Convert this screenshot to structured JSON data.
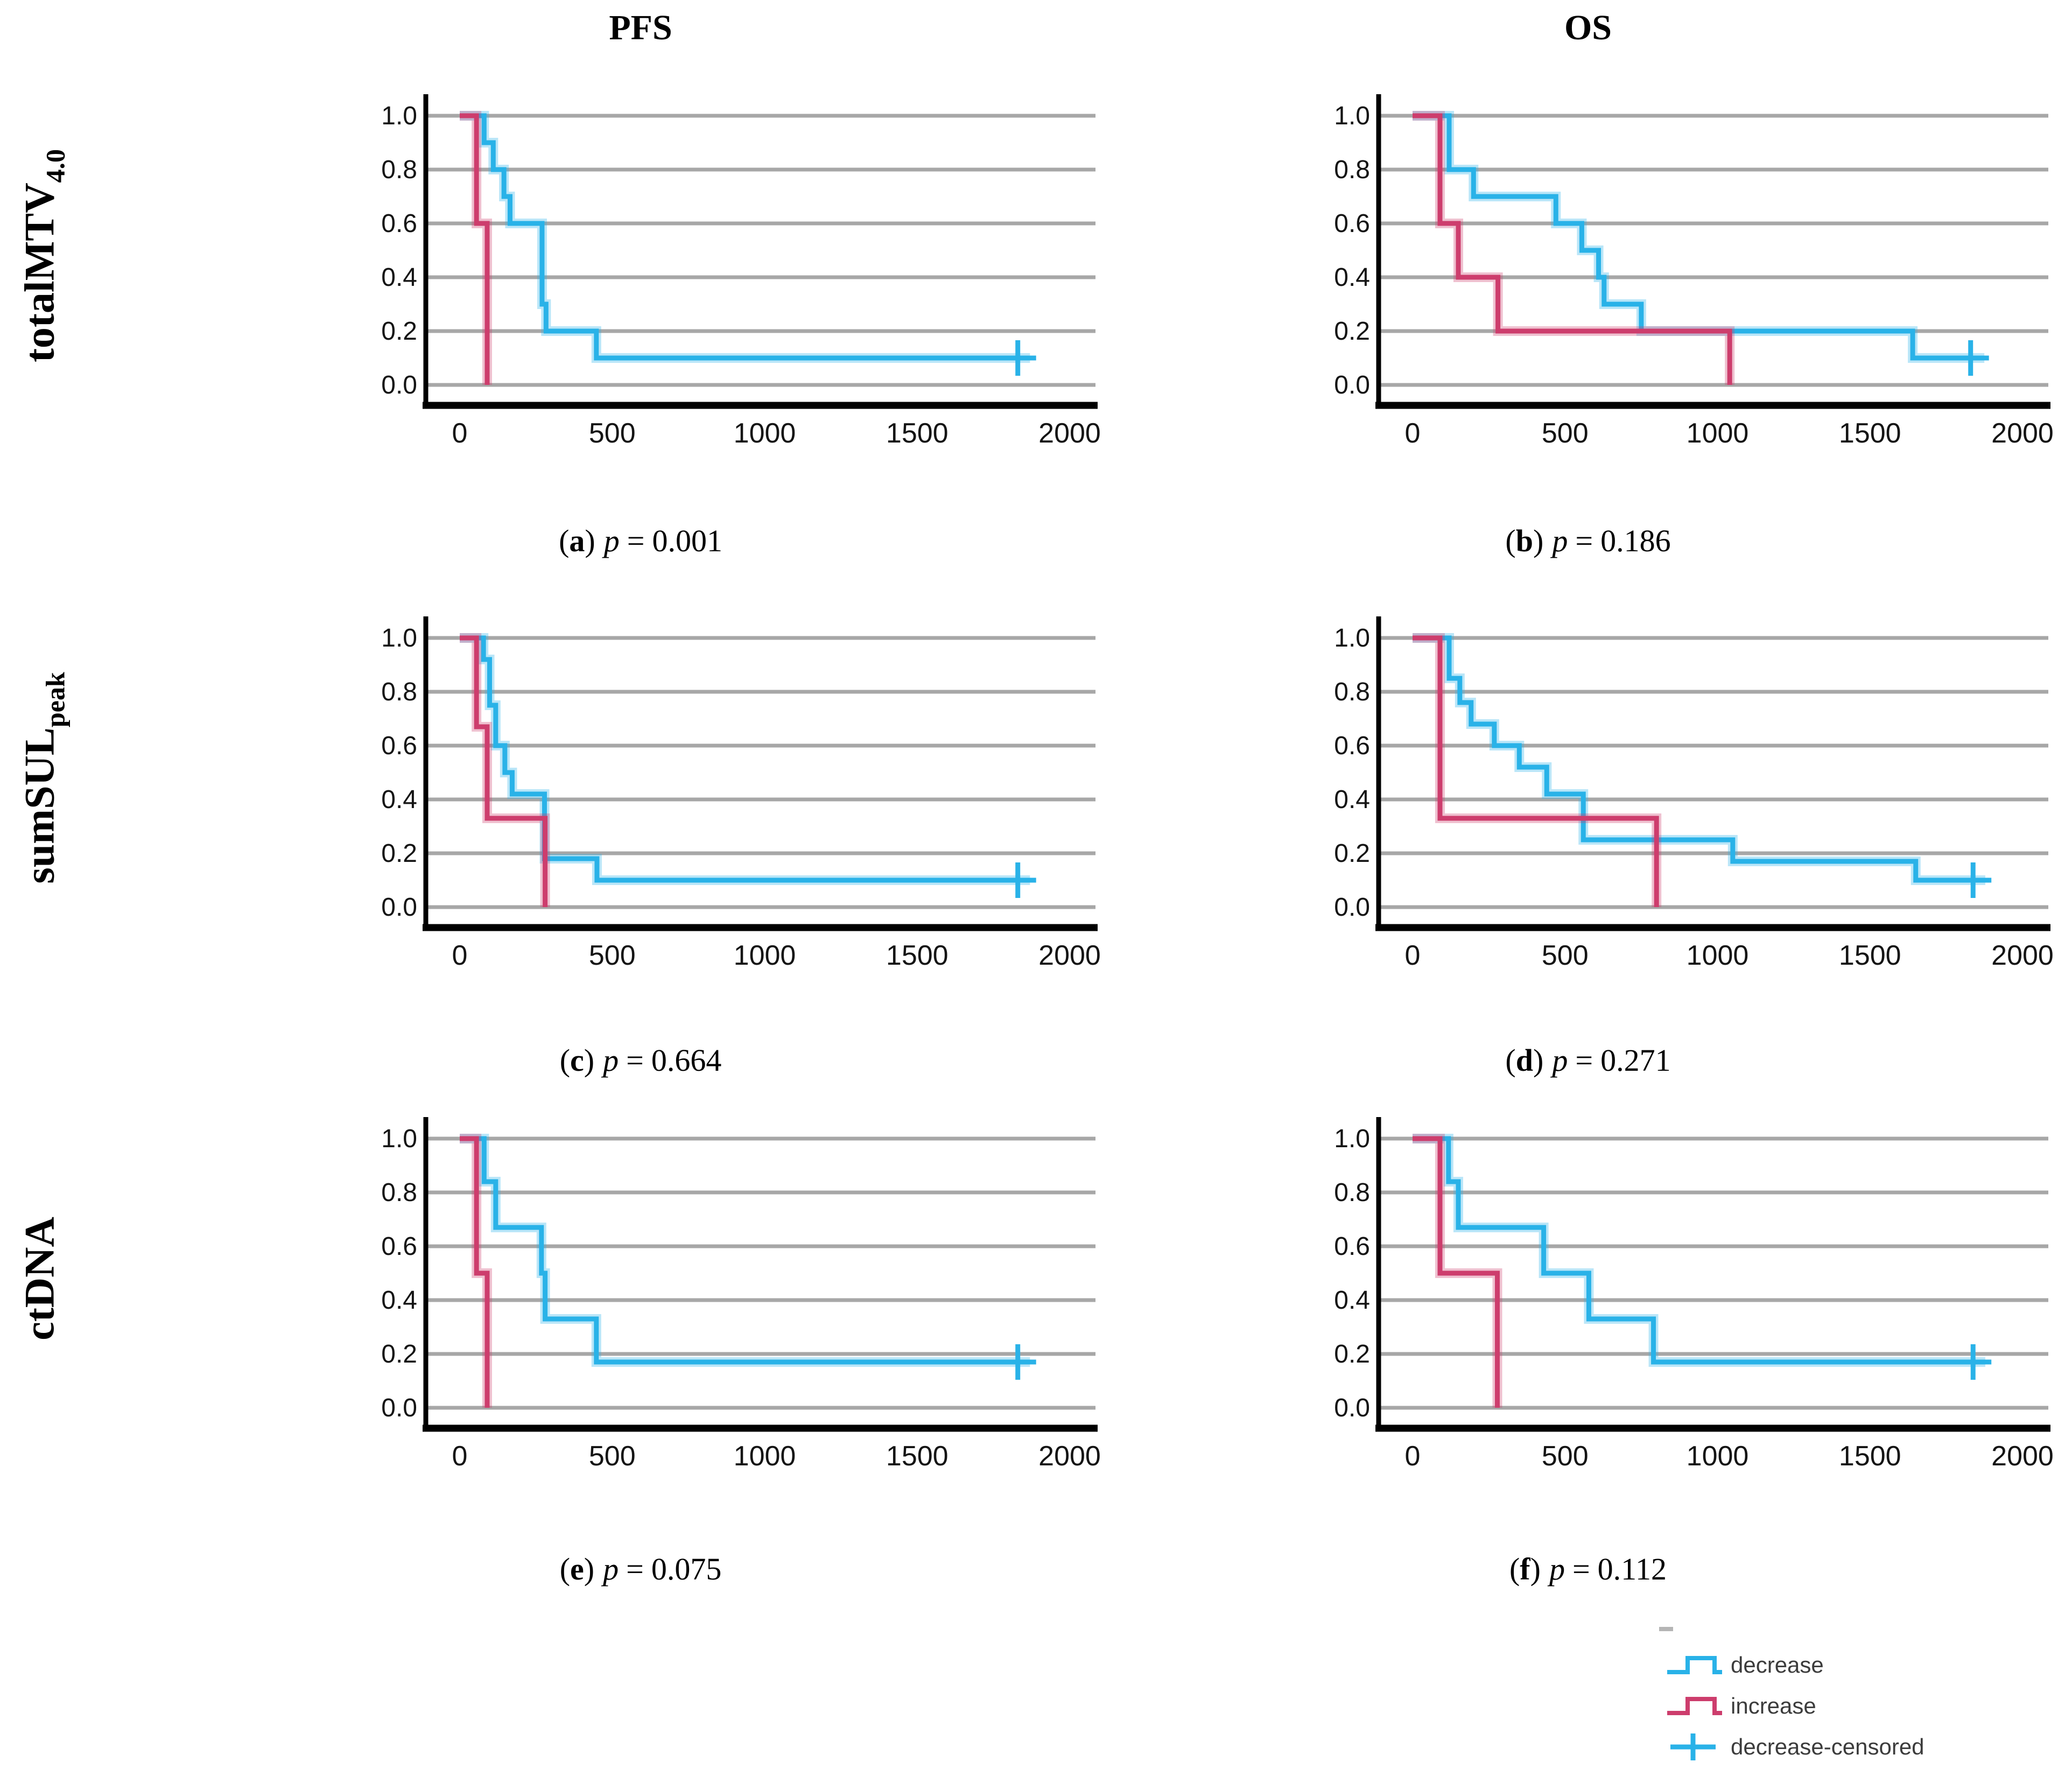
{
  "col_headers": [
    {
      "label": "PFS"
    },
    {
      "label": "OS"
    }
  ],
  "row_labels": [
    {
      "main": "totalMTV",
      "sub": "4.0"
    },
    {
      "main": "sumSUL",
      "sub": "peak"
    },
    {
      "main": "ctDNA",
      "sub": ""
    }
  ],
  "caption_syntax": {
    "open": "(",
    "close": ")",
    "p_symbol": "p",
    "equals": "="
  },
  "colors": {
    "decrease": "#29b2e8",
    "increase": "#cd3d6d",
    "grid": "#a7a7a7",
    "axis": "#000000",
    "tick_text": "#141414",
    "legend_text": "#3c3c3c",
    "artifact_dash": "#b5b5b5"
  },
  "legend": {
    "items": [
      {
        "label": "decrease",
        "series": "decrease",
        "glyph": "step"
      },
      {
        "label": "increase",
        "series": "increase",
        "glyph": "step"
      },
      {
        "label": "decrease-censored",
        "series": "decrease",
        "glyph": "plus"
      }
    ]
  },
  "chart_data": {
    "type": "line",
    "subtype": "kaplan-meier-step",
    "grid": "horizontal-only",
    "x_axis": {
      "ticks": [
        "0",
        "500",
        "1000",
        "1500",
        "2000"
      ],
      "lim": [
        0,
        2000
      ]
    },
    "y_axis": {
      "ticks": [
        "1.0",
        "0.8",
        "0.6",
        "0.4",
        "0.2",
        "0.0"
      ],
      "lim": [
        0,
        1
      ]
    },
    "panels": [
      {
        "id": "a",
        "row": "totalMTV4.0",
        "col": "PFS",
        "letter": "a",
        "p_value": "0.001",
        "series": [
          {
            "name": "decrease",
            "points": [
              [
                0,
                1
              ],
              [
                80,
                1
              ],
              [
                80,
                0.9
              ],
              [
                110,
                0.9
              ],
              [
                110,
                0.8
              ],
              [
                145,
                0.8
              ],
              [
                145,
                0.7
              ],
              [
                165,
                0.7
              ],
              [
                165,
                0.6
              ],
              [
                270,
                0.6
              ],
              [
                270,
                0.3
              ],
              [
                283,
                0.3
              ],
              [
                283,
                0.2
              ],
              [
                448,
                0.2
              ],
              [
                448,
                0.1
              ],
              [
                1870,
                0.1
              ]
            ]
          },
          {
            "name": "increase",
            "points": [
              [
                0,
                1
              ],
              [
                55,
                1
              ],
              [
                55,
                0.6
              ],
              [
                90,
                0.6
              ],
              [
                90,
                0
              ]
            ]
          }
        ],
        "censor": {
          "series": "decrease",
          "x": 1830,
          "y": 0.1
        }
      },
      {
        "id": "b",
        "row": "totalMTV4.0",
        "col": "OS",
        "letter": "b",
        "p_value": "0.186",
        "series": [
          {
            "name": "decrease",
            "points": [
              [
                0,
                1
              ],
              [
                120,
                1
              ],
              [
                120,
                0.8
              ],
              [
                200,
                0.8
              ],
              [
                200,
                0.7
              ],
              [
                470,
                0.7
              ],
              [
                470,
                0.6
              ],
              [
                555,
                0.6
              ],
              [
                555,
                0.5
              ],
              [
                610,
                0.5
              ],
              [
                610,
                0.4
              ],
              [
                628,
                0.4
              ],
              [
                628,
                0.3
              ],
              [
                750,
                0.3
              ],
              [
                750,
                0.2
              ],
              [
                1640,
                0.2
              ],
              [
                1640,
                0.1
              ],
              [
                1875,
                0.1
              ]
            ]
          },
          {
            "name": "increase",
            "points": [
              [
                0,
                1
              ],
              [
                90,
                1
              ],
              [
                90,
                0.6
              ],
              [
                150,
                0.6
              ],
              [
                150,
                0.4
              ],
              [
                280,
                0.4
              ],
              [
                280,
                0.2
              ],
              [
                1040,
                0.2
              ],
              [
                1040,
                0
              ]
            ]
          }
        ],
        "censor": {
          "series": "decrease",
          "x": 1830,
          "y": 0.1
        }
      },
      {
        "id": "c",
        "row": "sumSULpeak",
        "col": "PFS",
        "letter": "c",
        "p_value": "0.664",
        "series": [
          {
            "name": "decrease",
            "points": [
              [
                0,
                1
              ],
              [
                78,
                1
              ],
              [
                78,
                0.92
              ],
              [
                98,
                0.92
              ],
              [
                98,
                0.75
              ],
              [
                118,
                0.75
              ],
              [
                118,
                0.6
              ],
              [
                148,
                0.6
              ],
              [
                148,
                0.5
              ],
              [
                172,
                0.5
              ],
              [
                172,
                0.42
              ],
              [
                278,
                0.42
              ],
              [
                278,
                0.18
              ],
              [
                450,
                0.18
              ],
              [
                450,
                0.1
              ],
              [
                1870,
                0.1
              ]
            ]
          },
          {
            "name": "increase",
            "points": [
              [
                0,
                1
              ],
              [
                55,
                1
              ],
              [
                55,
                0.67
              ],
              [
                90,
                0.67
              ],
              [
                90,
                0.33
              ],
              [
                280,
                0.33
              ],
              [
                280,
                0
              ]
            ]
          }
        ],
        "censor": {
          "series": "decrease",
          "x": 1830,
          "y": 0.1
        }
      },
      {
        "id": "d",
        "row": "sumSULpeak",
        "col": "OS",
        "letter": "d",
        "p_value": "0.271",
        "series": [
          {
            "name": "decrease",
            "points": [
              [
                0,
                1
              ],
              [
                120,
                1
              ],
              [
                120,
                0.85
              ],
              [
                155,
                0.85
              ],
              [
                155,
                0.76
              ],
              [
                192,
                0.76
              ],
              [
                192,
                0.68
              ],
              [
                268,
                0.68
              ],
              [
                268,
                0.6
              ],
              [
                350,
                0.6
              ],
              [
                350,
                0.52
              ],
              [
                440,
                0.52
              ],
              [
                440,
                0.42
              ],
              [
                560,
                0.42
              ],
              [
                560,
                0.25
              ],
              [
                1050,
                0.25
              ],
              [
                1050,
                0.17
              ],
              [
                1650,
                0.17
              ],
              [
                1650,
                0.1
              ],
              [
                1878,
                0.1
              ]
            ]
          },
          {
            "name": "increase",
            "points": [
              [
                0,
                1
              ],
              [
                90,
                1
              ],
              [
                90,
                0.33
              ],
              [
                800,
                0.33
              ],
              [
                800,
                0
              ]
            ]
          }
        ],
        "censor": {
          "series": "decrease",
          "x": 1838,
          "y": 0.1
        }
      },
      {
        "id": "e",
        "row": "ctDNA",
        "col": "PFS",
        "letter": "e",
        "p_value": "0.075",
        "series": [
          {
            "name": "decrease",
            "points": [
              [
                0,
                1
              ],
              [
                80,
                1
              ],
              [
                80,
                0.84
              ],
              [
                118,
                0.84
              ],
              [
                118,
                0.67
              ],
              [
                268,
                0.67
              ],
              [
                268,
                0.5
              ],
              [
                280,
                0.5
              ],
              [
                280,
                0.33
              ],
              [
                448,
                0.33
              ],
              [
                448,
                0.17
              ],
              [
                1870,
                0.17
              ]
            ]
          },
          {
            "name": "increase",
            "points": [
              [
                0,
                1
              ],
              [
                55,
                1
              ],
              [
                55,
                0.5
              ],
              [
                90,
                0.5
              ],
              [
                90,
                0
              ]
            ]
          }
        ],
        "censor": {
          "series": "decrease",
          "x": 1830,
          "y": 0.17
        }
      },
      {
        "id": "f",
        "row": "ctDNA",
        "col": "OS",
        "letter": "f",
        "p_value": "0.112",
        "series": [
          {
            "name": "decrease",
            "points": [
              [
                0,
                1
              ],
              [
                118,
                1
              ],
              [
                118,
                0.84
              ],
              [
                150,
                0.84
              ],
              [
                150,
                0.67
              ],
              [
                430,
                0.67
              ],
              [
                430,
                0.5
              ],
              [
                578,
                0.5
              ],
              [
                578,
                0.33
              ],
              [
                790,
                0.33
              ],
              [
                790,
                0.17
              ],
              [
                1878,
                0.17
              ]
            ]
          },
          {
            "name": "increase",
            "points": [
              [
                0,
                1
              ],
              [
                90,
                1
              ],
              [
                90,
                0.5
              ],
              [
                278,
                0.5
              ],
              [
                278,
                0
              ]
            ]
          }
        ],
        "censor": {
          "series": "decrease",
          "x": 1838,
          "y": 0.17
        }
      }
    ]
  }
}
